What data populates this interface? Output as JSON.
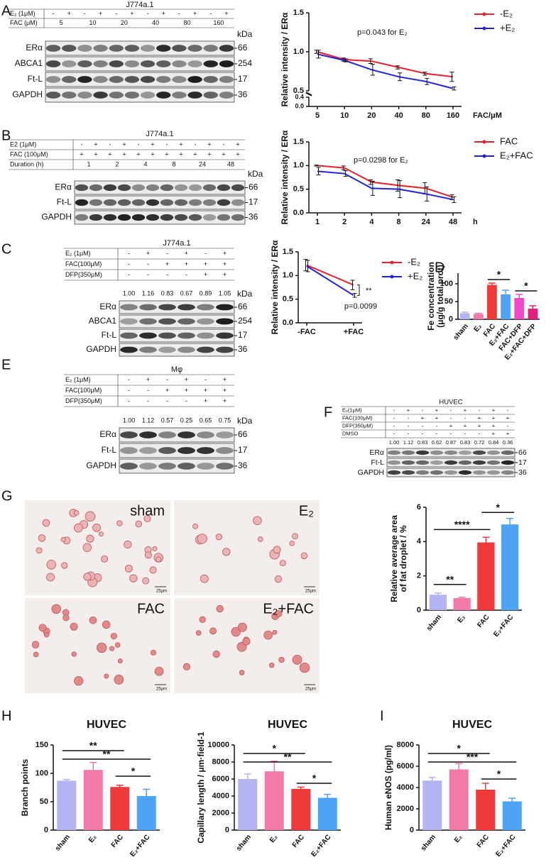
{
  "panel_labels": [
    "A",
    "B",
    "C",
    "D",
    "E",
    "F",
    "G",
    "H",
    "I"
  ],
  "blots": [
    {
      "title": "J774a.1",
      "rows": [
        {
          "label": "E₂ (1μM)",
          "cells": [
            "-",
            "+",
            "-",
            "+",
            "-",
            "+",
            "-",
            "+",
            "-",
            "+",
            "-",
            "+"
          ]
        },
        {
          "label": "FAC  (μM)",
          "cells": [
            "5",
            "10",
            "20",
            "40",
            "80",
            "160"
          ]
        }
      ],
      "kda_label": "kDa",
      "bands": [
        {
          "name": "ERα",
          "kda": 66
        },
        {
          "name": "ABCA1",
          "kda": 254
        },
        {
          "name": "Ft-L",
          "kda": 17
        },
        {
          "name": "GAPDH",
          "kda": 36
        }
      ]
    },
    {
      "title": "J774a.1",
      "rows": [
        {
          "label": "E2 (1μM)",
          "cells": [
            "-",
            "+",
            "-",
            "+",
            "-",
            "+",
            "-",
            "+",
            "-",
            "+",
            "-",
            "+"
          ]
        },
        {
          "label": "FAC (100μM)",
          "cells": [
            "+",
            "+",
            "+",
            "+",
            "+",
            "+",
            "+",
            "+",
            "+",
            "+",
            "+",
            "+"
          ]
        },
        {
          "label": "Duration (h)",
          "cells": [
            "1",
            "2",
            "4",
            "8",
            "24",
            "48"
          ]
        }
      ],
      "kda_label": "kDa",
      "bands": [
        {
          "name": "ERα",
          "kda": 66
        },
        {
          "name": "Ft-L",
          "kda": 17
        },
        {
          "name": "GAPDH",
          "kda": 36
        }
      ]
    },
    {
      "title": "J774a.1",
      "rows": [
        {
          "label": "E₂ (1μM)",
          "cells": [
            "-",
            "+",
            "-",
            "+",
            "-",
            "+"
          ]
        },
        {
          "label": "FAC(100μM)",
          "cells": [
            "-",
            "-",
            "+",
            "+",
            "+",
            "+"
          ]
        },
        {
          "label": "DFP(350μM)",
          "cells": [
            "-",
            "-",
            "-",
            "-",
            "+",
            "+"
          ]
        }
      ],
      "densities": [
        "1.00",
        "1.16",
        "0.83",
        "0.67",
        "0.89",
        "1.05"
      ],
      "kda_label": "kDa",
      "bands": [
        {
          "name": "ERα",
          "kda": 66
        },
        {
          "name": "ABCA1",
          "kda": 254
        },
        {
          "name": "Ft-L",
          "kda": 17
        },
        {
          "name": "GAPDH",
          "kda": 36
        }
      ]
    },
    {
      "title": "Mφ",
      "rows": [
        {
          "label": "E₂ (1μM)",
          "cells": [
            "-",
            "+",
            "-",
            "+",
            "-",
            "+"
          ]
        },
        {
          "label": "FAC(100μM)",
          "cells": [
            "-",
            "-",
            "+",
            "+",
            "+",
            "+"
          ]
        },
        {
          "label": "DFP(350μM)",
          "cells": [
            "-",
            "-",
            "-",
            "-",
            "+",
            "+"
          ]
        }
      ],
      "densities": [
        "1.00",
        "1.12",
        "0.57",
        "0.25",
        "0.65",
        "0.75"
      ],
      "kda_label": "kDa",
      "bands": [
        {
          "name": "ERα",
          "kda": 66
        },
        {
          "name": "Ft-L",
          "kda": 17
        },
        {
          "name": "GAPDH",
          "kda": 36
        }
      ]
    },
    {
      "title": "HUVEC",
      "rows": [
        {
          "label": "E₂(1μM)",
          "cells": [
            "-",
            "+",
            "-",
            "+",
            "-",
            "+",
            "-",
            "+",
            "-"
          ]
        },
        {
          "label": "FAC(100μM)",
          "cells": [
            "-",
            "-",
            "+",
            "+",
            "-",
            "-",
            "+",
            "+",
            "+"
          ]
        },
        {
          "label": "DFP(350μM)",
          "cells": [
            "-",
            "-",
            "-",
            "-",
            "+",
            "+",
            "+",
            "+",
            "-"
          ]
        },
        {
          "label": "DMSO",
          "cells": [
            "-",
            "-",
            "-",
            "-",
            "-",
            "-",
            "-",
            "+",
            "+"
          ]
        }
      ],
      "densities": [
        "1.00",
        "1.12",
        "0.83",
        "0.62",
        "0.87",
        "0.83",
        "0.72",
        "0.84",
        "0.36"
      ],
      "bands": [
        {
          "name": "ERα",
          "kda": 66
        },
        {
          "name": "Ft-L",
          "kda": 17
        },
        {
          "name": "GAPDH",
          "kda": 36
        }
      ]
    }
  ],
  "micrographs": {
    "labels": [
      "sham",
      "E₂",
      "FAC",
      "E₂+FAC"
    ],
    "scale_bar": "25μm"
  },
  "chart_data": [
    {
      "type": "line",
      "y_label": "Relative intensity / ERα",
      "x_label": "FAC/μM",
      "annotations": [
        "p=0.043 for E₂"
      ],
      "categories": [
        "5",
        "10",
        "20",
        "40",
        "80",
        "160"
      ],
      "ylim": [
        0.5,
        1.5
      ],
      "yticks": [
        0.5,
        {
          "value": 1,
          "label": "1.0"
        },
        1.5
      ],
      "ybreak_ticks": [
        {
          "value": 0,
          "label": "0.0"
        },
        0.4
      ],
      "series": [
        {
          "name": "-E₂",
          "color": "#e8202a",
          "values": [
            1.0,
            0.9,
            0.88,
            0.8,
            0.72,
            0.68
          ],
          "errors": [
            0.02,
            0.02,
            0.03,
            0.02,
            0.02,
            0.06
          ]
        },
        {
          "name": "+E₂",
          "color": "#2222dd",
          "values": [
            0.97,
            0.89,
            0.77,
            0.68,
            0.62,
            0.53
          ],
          "errors": [
            0.05,
            0.02,
            0.07,
            0.05,
            0.04,
            0.02
          ]
        }
      ]
    },
    {
      "type": "line",
      "y_label": "Relative intensity / ERα",
      "x_label": "h",
      "annotations": [
        "p=0.0298 for E₂"
      ],
      "categories": [
        "1",
        "2",
        "4",
        "8",
        "24",
        "48"
      ],
      "ylim": [
        0,
        1.5
      ],
      "yticks": [
        {
          "value": 0,
          "label": "0.0"
        },
        0.5,
        {
          "value": 1,
          "label": "1.0"
        },
        1.5
      ],
      "series": [
        {
          "name": "FAC",
          "color": "#e8202a",
          "values": [
            1.0,
            0.95,
            0.65,
            0.58,
            0.52,
            0.33
          ],
          "errors": [
            0.01,
            0.04,
            0.05,
            0.12,
            0.12,
            0.05
          ]
        },
        {
          "name": "E₂+FAC",
          "color": "#2222dd",
          "values": [
            0.88,
            0.83,
            0.52,
            0.5,
            0.4,
            0.28
          ],
          "errors": [
            0.08,
            0.06,
            0.15,
            0.18,
            0.15,
            0.06
          ]
        }
      ]
    },
    {
      "type": "line",
      "y_label": "Relative intensity / ERα",
      "annotations": [
        "**",
        "p=0.0099"
      ],
      "categories": [
        "-FAC",
        "+FAC"
      ],
      "ylim": [
        0,
        1.5
      ],
      "yticks": [
        {
          "value": 0,
          "label": "0.0"
        },
        0.5,
        {
          "value": 1,
          "label": "1.0"
        },
        1.5
      ],
      "series": [
        {
          "name": "-E₂",
          "color": "#e8202a",
          "values": [
            1.22,
            0.8
          ],
          "errors": [
            0.12,
            0.1
          ]
        },
        {
          "name": "+E₂",
          "color": "#2222dd",
          "values": [
            1.2,
            0.58
          ],
          "errors": [
            0.12,
            0.04
          ]
        }
      ]
    },
    {
      "type": "bar",
      "y_label": [
        "Fe concentration",
        "(μg/g total prot)"
      ],
      "annotations": [
        "*",
        "*"
      ],
      "categories": [
        "sham",
        "E₂",
        "FAC",
        "E₂+FAC",
        "FAC+DFP",
        "E₂+FAC+DFP"
      ],
      "values": [
        17,
        15,
        97,
        70,
        60,
        30
      ],
      "errors": [
        3,
        2,
        5,
        12,
        10,
        8
      ],
      "colors": [
        "#b4b4f2",
        "#f27aa8",
        "#f03a3a",
        "#4fa3f5",
        "#f048c8",
        "#e0207a"
      ],
      "ylim": [
        0,
        130
      ],
      "yticks": [
        0,
        50,
        100
      ]
    },
    {
      "type": "bar",
      "y_label": [
        "Relative average area",
        "of fat droplet / %"
      ],
      "annotations": [
        "**",
        "****",
        "*"
      ],
      "categories": [
        "sham",
        "E₂",
        "FAC",
        "E₂+FAC"
      ],
      "values": [
        0.9,
        0.7,
        3.95,
        5.0
      ],
      "errors": [
        0.1,
        0.05,
        0.3,
        0.35
      ],
      "colors": [
        "#b4b4f2",
        "#f27aa8",
        "#f03a3a",
        "#4fa3f5"
      ],
      "ylim": [
        0,
        6
      ],
      "yticks": [
        0,
        2,
        4,
        6
      ]
    },
    {
      "type": "bar",
      "title": "HUVEC",
      "y_label": "Branch points",
      "annotations": [
        "**",
        "**",
        "*"
      ],
      "categories": [
        "sham",
        "E₂",
        "FAC",
        "E₂+FAC"
      ],
      "values": [
        87,
        106,
        76,
        60
      ],
      "errors": [
        2,
        13,
        3,
        12
      ],
      "colors": [
        "#b4b4f2",
        "#f27aa8",
        "#f03a3a",
        "#4fa3f5"
      ],
      "ylim": [
        0,
        150
      ],
      "yticks": [
        0,
        50,
        100,
        150
      ]
    },
    {
      "type": "bar",
      "title": "HUVEC",
      "y_label": "Capillary length / μm·field-1",
      "annotations": [
        "*",
        "**",
        "*"
      ],
      "categories": [
        "sham",
        "E₂",
        "FAC",
        "E₂+FAC"
      ],
      "values": [
        6000,
        6900,
        4850,
        3800
      ],
      "errors": [
        600,
        1200,
        200,
        400
      ],
      "colors": [
        "#b4b4f2",
        "#f27aa8",
        "#f03a3a",
        "#4fa3f5"
      ],
      "ylim": [
        0,
        10000
      ],
      "yticks": [
        0,
        2000,
        4000,
        6000,
        8000,
        10000
      ]
    },
    {
      "type": "bar",
      "title": "HUVEC",
      "y_label": "Human eNOS (pg/ml)",
      "annotations": [
        "*",
        "***",
        "*"
      ],
      "categories": [
        "sham",
        "E₂",
        "FAC",
        "E₂+FAC"
      ],
      "values": [
        4650,
        5700,
        3800,
        2700
      ],
      "errors": [
        300,
        550,
        600,
        300
      ],
      "colors": [
        "#b4b4f2",
        "#f27aa8",
        "#f03a3a",
        "#4fa3f5"
      ],
      "ylim": [
        0,
        8000
      ],
      "yticks": [
        0,
        2000,
        4000,
        6000,
        8000
      ]
    }
  ]
}
